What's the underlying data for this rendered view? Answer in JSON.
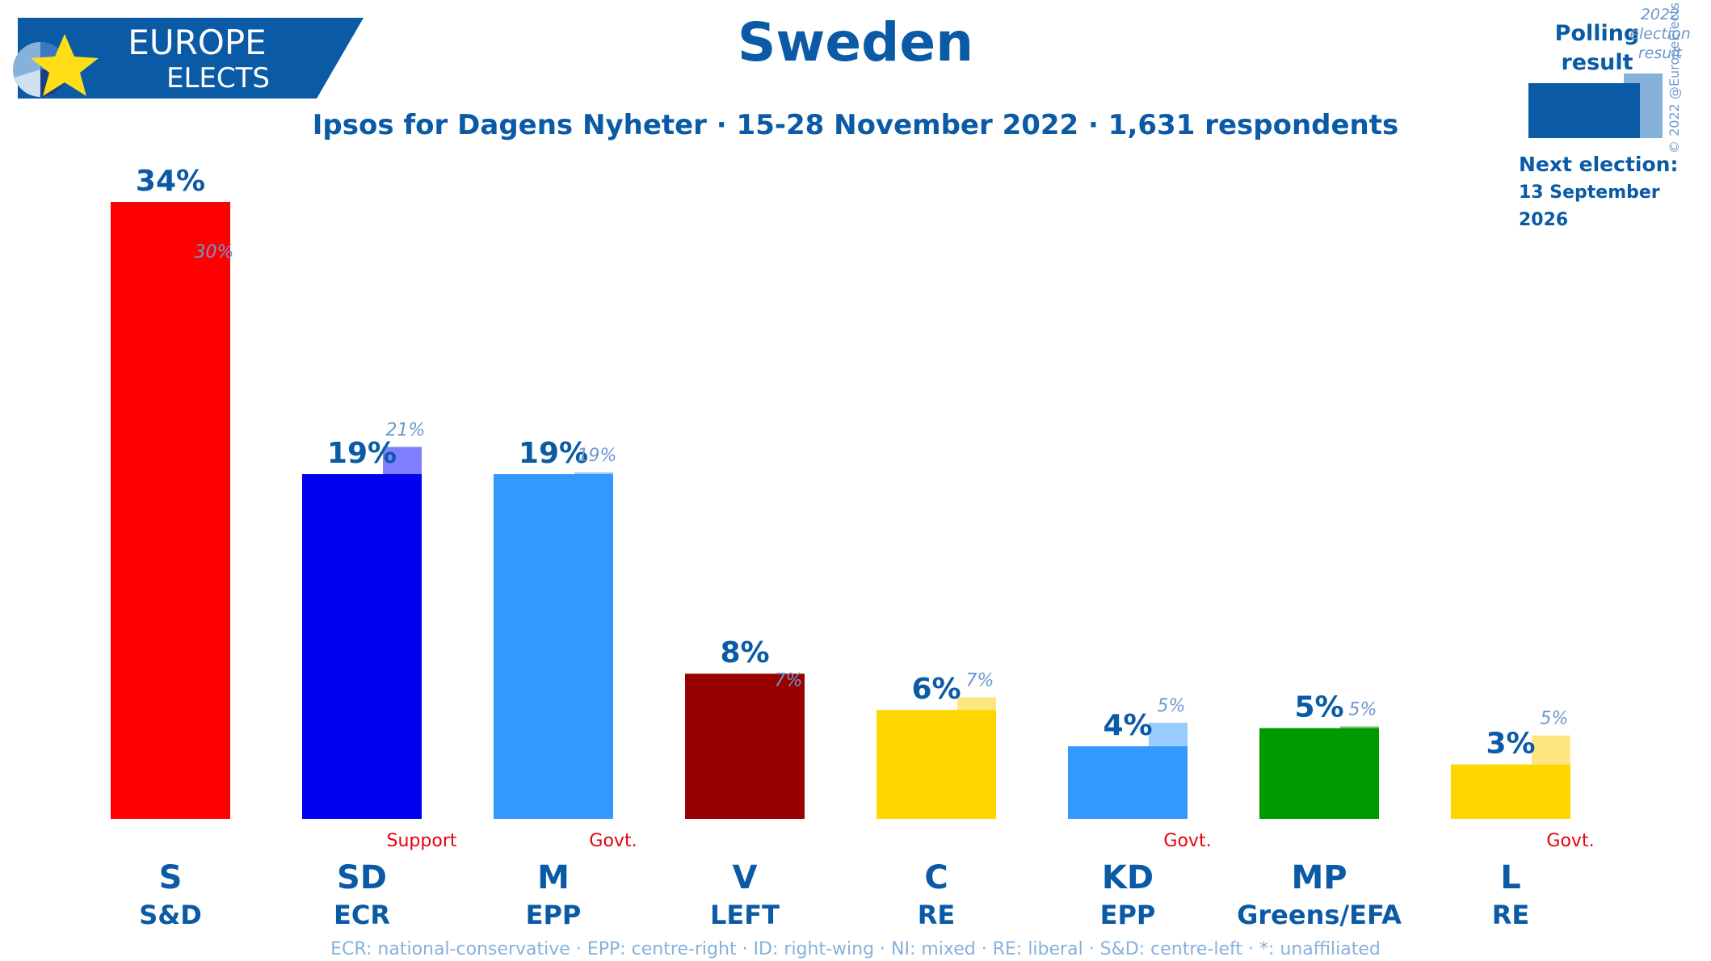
{
  "brand": {
    "line1": "EUROPE",
    "line2": "ELECTS"
  },
  "title": "Sweden",
  "subtitle": "Ipsos for Dagens Nyheter · 15-28 November 2022 · 1,631 respondents",
  "legend": {
    "polling_line1": "Polling",
    "polling_line2": "result",
    "election_line1": "2022",
    "election_line2": "election",
    "election_line3": "result",
    "next_label": "Next election:",
    "next_date": "13 September 2026"
  },
  "copyright": "© 2022 @EuropeElects",
  "footnote": "ECR: national-conservative · EPP: centre-right · ID: right-wing · NI: mixed · RE: liberal · S&D: centre-left · *: unaffiliated",
  "colors": {
    "brand": "#0a5aa6",
    "previous_label": "#6c99cc",
    "status": "#e8000b"
  },
  "chart_data": {
    "type": "bar",
    "categories": [
      "S",
      "SD",
      "M",
      "V",
      "C",
      "KD",
      "MP",
      "L"
    ],
    "groups": [
      "S&D",
      "ECR",
      "EPP",
      "LEFT",
      "RE",
      "EPP",
      "Greens/EFA",
      "RE"
    ],
    "status": [
      "",
      "Support",
      "Govt.",
      "",
      "",
      "Govt.",
      "",
      "Govt."
    ],
    "series": [
      {
        "name": "Polling result",
        "values": [
          34,
          19,
          19,
          8,
          6,
          4,
          5,
          3
        ],
        "labels": [
          "34%",
          "19%",
          "19%",
          "8%",
          "6%",
          "4%",
          "5%",
          "3%"
        ],
        "colors": [
          "#ff0000",
          "#0000ee",
          "#3399ff",
          "#990000",
          "#ffd700",
          "#3399ff",
          "#009900",
          "#ffd700"
        ]
      },
      {
        "name": "2022 election result",
        "values": [
          30.3,
          20.5,
          19.1,
          6.7,
          6.7,
          5.3,
          5.1,
          4.6
        ],
        "labels": [
          "30%",
          "21%",
          "19%",
          "7%",
          "7%",
          "5%",
          "5%",
          "5%"
        ],
        "colors": [
          "#ff7f7f",
          "#7f7fff",
          "#99ccff",
          "#cc7f7f",
          "#ffe680",
          "#99ccff",
          "#80cc80",
          "#ffe680"
        ]
      }
    ],
    "ylim": [
      0,
      34
    ]
  }
}
